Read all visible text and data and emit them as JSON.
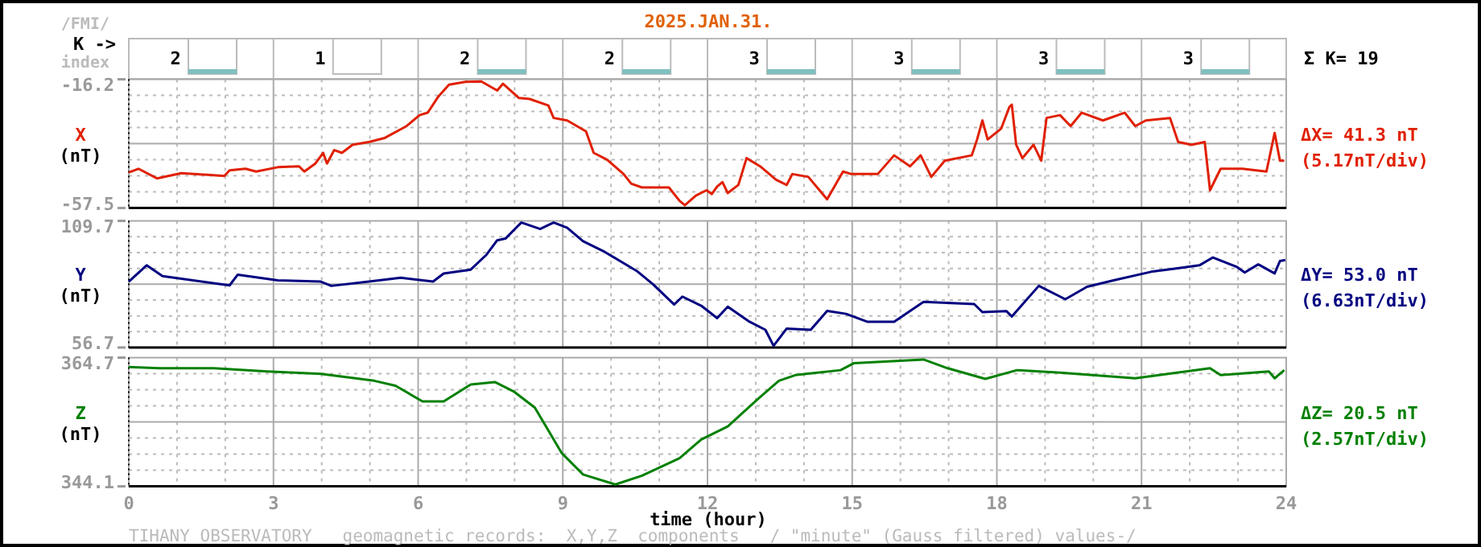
{
  "chart_data": [
    {
      "type": "other",
      "title": "2025.JAN.31.",
      "categories": [
        null,
        null,
        null,
        null,
        null,
        null,
        null,
        null
      ],
      "values": [
        2,
        1,
        2,
        2,
        3,
        3,
        3,
        3
      ],
      "data_labels": true,
      "color": "#80c0c0",
      "annotations": [
        "/FMI/",
        "K ->",
        "index",
        "Σ K= 19"
      ]
    },
    {
      "type": "line",
      "ylabel": "X (nT)",
      "xlim": [
        0,
        24
      ],
      "xticks": [
        0,
        3,
        6,
        9,
        12,
        15,
        18,
        21,
        24
      ],
      "ylim": [
        -57.5,
        -16.2
      ],
      "yticks": [
        -57.5,
        -16.2
      ],
      "grid": true,
      "tick_labels": "y",
      "annotations": [
        "ΔX= 41.3 nT",
        "(5.17nT/div)"
      ],
      "series": [
        {
          "color": "#e02000",
          "x": [
            0,
            0.2,
            0.59,
            1.09,
            1.98,
            2.09,
            2.42,
            2.64,
            3.09,
            3.53,
            3.64,
            3.87,
            4.03,
            4.11,
            4.26,
            4.42,
            4.64,
            4.98,
            5.31,
            5.76,
            6.03,
            6.2,
            6.42,
            6.64,
            6.98,
            7.31,
            7.64,
            7.76,
            8.09,
            8.31,
            8.7,
            8.81,
            9.09,
            9.48,
            9.64,
            9.92,
            10.26,
            10.42,
            10.64,
            11.2,
            11.42,
            11.53,
            11.76,
            11.98,
            12.09,
            12.2,
            12.31,
            12.42,
            12.64,
            12.81,
            13.09,
            13.42,
            13.64,
            13.76,
            14.09,
            14.48,
            14.81,
            14.98,
            15.53,
            15.87,
            16.2,
            16.42,
            16.64,
            16.92,
            17.48,
            17.59,
            17.7,
            17.81,
            18.09,
            18.26,
            18.31,
            18.4,
            18.53,
            18.76,
            18.92,
            19.03,
            19.31,
            19.53,
            19.76,
            20.2,
            20.65,
            20.87,
            21.09,
            21.59,
            21.76,
            22.04,
            22.31,
            22.42,
            22.64,
            23.09,
            23.59,
            23.76,
            23.87,
            23.96
          ],
          "values": [
            -46.1,
            -44.9,
            -48.0,
            -46.3,
            -47.2,
            -45.4,
            -44.9,
            -45.8,
            -44.4,
            -44.1,
            -45.8,
            -43.2,
            -39.8,
            -43.2,
            -38.9,
            -39.8,
            -37.2,
            -36.3,
            -35.0,
            -31.2,
            -27.7,
            -26.9,
            -21.7,
            -17.9,
            -17.0,
            -16.9,
            -19.8,
            -17.6,
            -22.2,
            -22.5,
            -24.6,
            -28.6,
            -29.4,
            -32.9,
            -39.8,
            -42.0,
            -46.6,
            -49.7,
            -50.9,
            -50.9,
            -55.2,
            -56.6,
            -53.5,
            -51.8,
            -53.0,
            -50.6,
            -49.2,
            -52.7,
            -50.1,
            -41.5,
            -44.1,
            -48.4,
            -50.1,
            -46.6,
            -47.5,
            -54.7,
            -45.8,
            -46.6,
            -46.6,
            -40.6,
            -44.1,
            -40.6,
            -47.5,
            -42.3,
            -40.6,
            -35.5,
            -29.4,
            -35.5,
            -32.0,
            -25.1,
            -24.3,
            -37.2,
            -41.5,
            -37.2,
            -42.3,
            -28.6,
            -27.7,
            -31.2,
            -26.9,
            -29.4,
            -26.9,
            -31.2,
            -29.4,
            -28.6,
            -36.3,
            -37.2,
            -36.3,
            -51.8,
            -44.9,
            -44.9,
            -45.8,
            -33.4,
            -42.3,
            -42.3
          ]
        }
      ]
    },
    {
      "type": "line",
      "ylabel": "Y (nT)",
      "xlim": [
        0,
        24
      ],
      "xticks": [
        0,
        3,
        6,
        9,
        12,
        15,
        18,
        21,
        24
      ],
      "ylim": [
        56.7,
        109.7
      ],
      "yticks": [
        56.7,
        109.7
      ],
      "grid": true,
      "tick_labels": "y",
      "annotations": [
        "ΔY= 53.0 nT",
        "(6.63nT/div)"
      ],
      "series": [
        {
          "color": "#000080",
          "x": [
            0,
            0.37,
            0.7,
            2.09,
            2.26,
            3.09,
            3.98,
            4.2,
            4.98,
            5.64,
            6.31,
            6.53,
            7.09,
            7.42,
            7.64,
            7.81,
            8.03,
            8.14,
            8.53,
            8.81,
            9.09,
            9.42,
            9.87,
            10.53,
            10.87,
            11.31,
            11.48,
            11.87,
            12.2,
            12.42,
            12.87,
            13.2,
            13.37,
            13.64,
            14.14,
            14.48,
            14.87,
            15.31,
            15.87,
            16.48,
            17.53,
            17.7,
            18.2,
            18.31,
            18.87,
            19.42,
            19.87,
            20.42,
            21.2,
            21.75,
            22.2,
            22.48,
            22.98,
            23.14,
            23.42,
            23.76,
            23.87,
            23.98
          ],
          "values": [
            84.3,
            91.1,
            86.6,
            82.7,
            87.2,
            84.8,
            84.3,
            82.5,
            84.3,
            85.9,
            84.3,
            87.7,
            89.3,
            95.6,
            101.6,
            102.3,
            106.8,
            109.0,
            106.3,
            109.0,
            106.8,
            101.2,
            96.7,
            88.8,
            83.2,
            74.7,
            78.0,
            74.2,
            69.0,
            73.8,
            67.5,
            64.1,
            57.4,
            64.6,
            64.1,
            72.0,
            70.8,
            67.5,
            67.5,
            75.8,
            74.9,
            71.5,
            71.9,
            69.7,
            82.5,
            76.9,
            82.1,
            84.8,
            88.4,
            89.9,
            91.1,
            94.4,
            90.4,
            88.1,
            91.5,
            87.7,
            92.9,
            93.3
          ]
        }
      ]
    },
    {
      "type": "line",
      "ylabel": "Z (nT)",
      "xlabel": "time (hour)",
      "xlim": [
        0,
        24
      ],
      "xticks": [
        0,
        3,
        6,
        9,
        12,
        15,
        18,
        21,
        24
      ],
      "ylim": [
        344.1,
        364.7
      ],
      "yticks": [
        344.1,
        364.7
      ],
      "grid": true,
      "annotations": [
        "ΔZ= 20.5 nT",
        "(2.57nT/div)",
        "TIHANY OBSERVATORY   geomagnetic records:  X,Y,Z  components   / \"minute\" (Gauss filtered) values-/"
      ],
      "series": [
        {
          "color": "#008000",
          "x": [
            0,
            0.64,
            1.76,
            2.87,
            3.98,
            5.09,
            5.53,
            6.09,
            6.53,
            7.09,
            7.59,
            7.98,
            8.42,
            8.98,
            9.42,
            10.09,
            10.64,
            11.42,
            11.87,
            12.42,
            13.09,
            13.48,
            13.82,
            14.76,
            15.03,
            16.48,
            16.98,
            17.76,
            18.42,
            19.31,
            20.87,
            22.42,
            22.64,
            23.64,
            23.76,
            23.96
          ],
          "values": [
            363.2,
            363.0,
            363.0,
            362.5,
            362.1,
            361.0,
            360.2,
            357.7,
            357.7,
            360.4,
            360.8,
            359.3,
            356.7,
            349.4,
            346.0,
            344.4,
            345.8,
            348.6,
            351.6,
            353.7,
            358.4,
            361.0,
            361.9,
            362.7,
            363.8,
            364.4,
            363.0,
            361.3,
            362.7,
            362.3,
            361.4,
            363.0,
            361.9,
            362.5,
            361.4,
            362.7
          ]
        }
      ]
    }
  ]
}
